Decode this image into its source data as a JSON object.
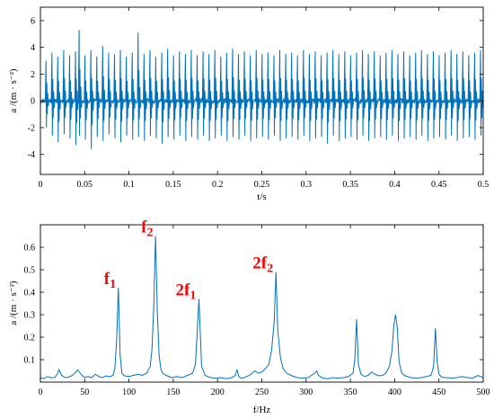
{
  "chart_data": [
    {
      "type": "line",
      "xlabel": "t/s",
      "ylabel": "a /(m · s⁻²)",
      "xlim": [
        0,
        0.5
      ],
      "ylim": [
        -5.5,
        7
      ],
      "xticks": [
        0,
        0.05,
        0.1,
        0.15,
        0.2,
        0.25,
        0.3,
        0.35,
        0.4,
        0.45,
        0.5
      ],
      "xtick_labels": [
        "0",
        "0.05",
        "0.1",
        "0.15",
        "0.2",
        "0.25",
        "0.3",
        "0.35",
        "0.4",
        "0.45",
        "0.5"
      ],
      "yticks": [
        -4,
        -2,
        0,
        2,
        4,
        6
      ],
      "ytick_labels": [
        "-4",
        "-2",
        "0",
        "2",
        "4",
        "6"
      ],
      "grid": false,
      "color": "#0072bd",
      "series": [
        {
          "impulse_times": [
            0.0063,
            0.013,
            0.0196,
            0.0263,
            0.033,
            0.0396,
            0.0437,
            0.0503,
            0.057,
            0.0637,
            0.0703,
            0.077,
            0.0837,
            0.0903,
            0.097,
            0.1037,
            0.1103,
            0.117,
            0.1237,
            0.1303,
            0.137,
            0.1437,
            0.1503,
            0.157,
            0.1637,
            0.1703,
            0.177,
            0.1837,
            0.1903,
            0.197,
            0.2037,
            0.2103,
            0.217,
            0.2237,
            0.2303,
            0.237,
            0.2437,
            0.2503,
            0.257,
            0.2637,
            0.2703,
            0.277,
            0.2837,
            0.2903,
            0.297,
            0.3037,
            0.3103,
            0.317,
            0.3237,
            0.3303,
            0.337,
            0.3437,
            0.3503,
            0.357,
            0.3637,
            0.3703,
            0.377,
            0.3837,
            0.3903,
            0.397,
            0.4037,
            0.4103,
            0.417,
            0.4237,
            0.4303,
            0.437,
            0.4437,
            0.4503,
            0.457,
            0.4637,
            0.4703,
            0.477,
            0.4837,
            0.4903,
            0.497
          ],
          "peak_positive": [
            3.0,
            3.6,
            3.3,
            3.8,
            3.4,
            3.7,
            5.3,
            3.4,
            3.8,
            3.3,
            4.1,
            3.6,
            3.5,
            3.8,
            3.3,
            3.6,
            5.1,
            3.5,
            3.8,
            3.3,
            3.6,
            3.9,
            3.4,
            3.7,
            3.5,
            3.8,
            3.4,
            3.7,
            3.5,
            3.8,
            3.3,
            3.6,
            3.9,
            3.5,
            3.7,
            3.4,
            3.8,
            3.5,
            3.6,
            3.4,
            3.8,
            3.5,
            3.6,
            3.4,
            3.8,
            3.5,
            3.7,
            3.4,
            3.6,
            3.8,
            3.5,
            3.7,
            3.4,
            3.6,
            3.8,
            3.5,
            3.7,
            3.4,
            3.6,
            3.8,
            3.5,
            3.7,
            3.4,
            3.6,
            3.8,
            3.5,
            3.7,
            3.4,
            3.6,
            3.8,
            3.5,
            3.7,
            3.4,
            3.6,
            3.8
          ],
          "peak_negative": [
            -2.0,
            -2.6,
            -3.1,
            -2.5,
            -2.8,
            -3.3,
            -2.6,
            -2.9,
            -3.6,
            -2.7,
            -3.0,
            -2.5,
            -2.8,
            -3.1,
            -2.6,
            -2.9,
            -2.7,
            -3.0,
            -2.6,
            -2.8,
            -3.2,
            -2.7,
            -2.9,
            -2.6,
            -3.0,
            -2.7,
            -2.9,
            -2.6,
            -3.0,
            -2.8,
            -2.6,
            -3.0,
            -2.7,
            -2.9,
            -2.6,
            -3.0,
            -2.8,
            -2.7,
            -2.9,
            -2.6,
            -3.0,
            -2.8,
            -2.7,
            -2.9,
            -2.6,
            -3.0,
            -2.8,
            -2.7,
            -3.2,
            -2.6,
            -3.0,
            -2.8,
            -2.7,
            -2.9,
            -2.6,
            -3.0,
            -2.8,
            -2.7,
            -2.9,
            -2.6,
            -3.0,
            -2.8,
            -2.7,
            -2.9,
            -2.6,
            -3.0,
            -2.8,
            -2.7,
            -2.9,
            -2.6,
            -3.0,
            -2.8,
            -2.7,
            -2.9,
            -2.6
          ]
        }
      ]
    },
    {
      "type": "line",
      "xlabel": "f/Hz",
      "ylabel": "a /(m · s⁻²)",
      "xlim": [
        0,
        500
      ],
      "ylim": [
        0,
        0.7
      ],
      "xticks": [
        0,
        50,
        100,
        150,
        200,
        250,
        300,
        350,
        400,
        450,
        500
      ],
      "xtick_labels": [
        "0",
        "50",
        "100",
        "150",
        "200",
        "250",
        "300",
        "350",
        "400",
        "450",
        "500"
      ],
      "yticks": [
        0.1,
        0.2,
        0.3,
        0.4,
        0.5,
        0.6
      ],
      "ytick_labels": [
        "0.1",
        "0.2",
        "0.3",
        "0.4",
        "0.5",
        "0.6"
      ],
      "grid": false,
      "color": "#0072bd",
      "series": [
        {
          "x": [
            0,
            4,
            8,
            12,
            16,
            19,
            21,
            24,
            28,
            32,
            36,
            40,
            42,
            44,
            47,
            50,
            54,
            58,
            62,
            66,
            70,
            74,
            78,
            82,
            84,
            86,
            88,
            90,
            92,
            95,
            100,
            105,
            110,
            115,
            120,
            124,
            126,
            128,
            130,
            132,
            134,
            136,
            138,
            142,
            148,
            154,
            160,
            166,
            172,
            175,
            177,
            179,
            182,
            186,
            192,
            198,
            204,
            210,
            216,
            220,
            222,
            224,
            226,
            230,
            236,
            242,
            246,
            250,
            254,
            258,
            261,
            264,
            266,
            268,
            271,
            274,
            278,
            284,
            290,
            296,
            302,
            306,
            310,
            312,
            314,
            318,
            324,
            330,
            336,
            342,
            348,
            353,
            355,
            357,
            359,
            362,
            366,
            370,
            374,
            378,
            382,
            386,
            390,
            394,
            397,
            399,
            401,
            403,
            405,
            408,
            412,
            418,
            424,
            430,
            436,
            441,
            444,
            446,
            448,
            450,
            453,
            458,
            464,
            470,
            476,
            482,
            488,
            494,
            500
          ],
          "y": [
            0.02,
            0.015,
            0.025,
            0.02,
            0.02,
            0.035,
            0.055,
            0.03,
            0.02,
            0.022,
            0.03,
            0.045,
            0.055,
            0.045,
            0.03,
            0.02,
            0.025,
            0.02,
            0.035,
            0.025,
            0.02,
            0.028,
            0.024,
            0.03,
            0.06,
            0.18,
            0.42,
            0.12,
            0.04,
            0.028,
            0.025,
            0.03,
            0.035,
            0.03,
            0.04,
            0.07,
            0.15,
            0.34,
            0.65,
            0.31,
            0.12,
            0.06,
            0.04,
            0.03,
            0.02,
            0.025,
            0.02,
            0.03,
            0.04,
            0.08,
            0.22,
            0.37,
            0.07,
            0.03,
            0.02,
            0.018,
            0.02,
            0.015,
            0.02,
            0.03,
            0.055,
            0.025,
            0.018,
            0.02,
            0.03,
            0.05,
            0.04,
            0.045,
            0.06,
            0.08,
            0.14,
            0.27,
            0.49,
            0.23,
            0.11,
            0.06,
            0.04,
            0.028,
            0.02,
            0.018,
            0.02,
            0.03,
            0.04,
            0.05,
            0.03,
            0.02,
            0.015,
            0.02,
            0.018,
            0.02,
            0.025,
            0.04,
            0.1,
            0.28,
            0.08,
            0.035,
            0.025,
            0.03,
            0.045,
            0.035,
            0.028,
            0.03,
            0.04,
            0.07,
            0.14,
            0.25,
            0.3,
            0.24,
            0.09,
            0.04,
            0.028,
            0.02,
            0.018,
            0.02,
            0.025,
            0.03,
            0.07,
            0.24,
            0.09,
            0.035,
            0.022,
            0.02,
            0.018,
            0.02,
            0.025,
            0.02,
            0.018,
            0.03,
            0.02
          ]
        }
      ],
      "annotations": [
        {
          "base": "f",
          "sub": "1",
          "x": 88,
          "y": 0.42
        },
        {
          "base": "f",
          "sub": "2",
          "x": 130,
          "y": 0.65
        },
        {
          "base": "2f",
          "sub": "1",
          "x": 179,
          "y": 0.37
        },
        {
          "base": "2f",
          "sub": "2",
          "x": 266,
          "y": 0.49
        }
      ]
    }
  ]
}
